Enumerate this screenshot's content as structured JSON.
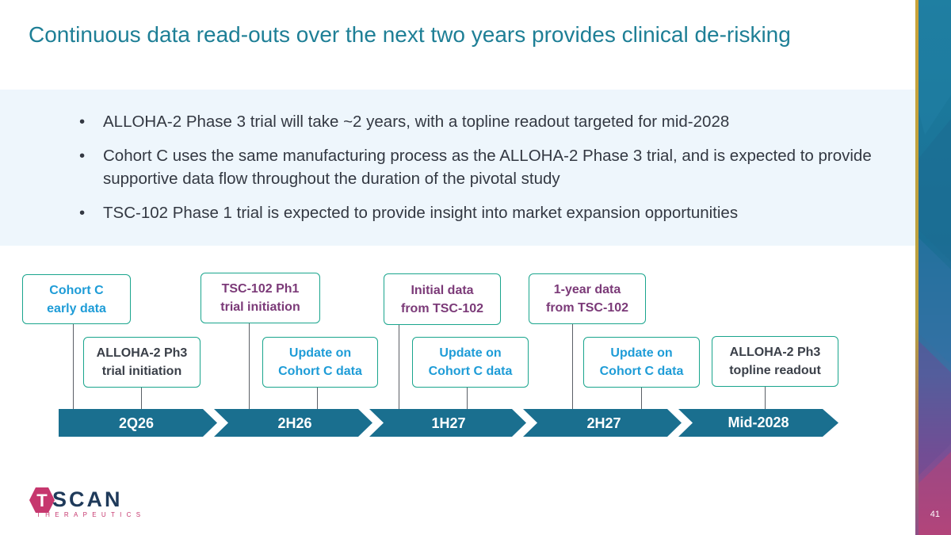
{
  "title": "Continuous data read-outs over the next two years provides clinical de-risking",
  "bullets": [
    "ALLOHA-2 Phase 3 trial will take ~2 years, with a topline readout targeted for mid-2028",
    "Cohort C uses the same manufacturing process as the ALLOHA-2 Phase 3 trial, and is expected to provide supportive data flow throughout the duration of the pivotal study",
    "TSC-102 Phase 1 trial is expected to provide insight into market expansion opportunities"
  ],
  "timeline": {
    "periods": [
      "2Q26",
      "2H26",
      "1H27",
      "2H27",
      "Mid-2028"
    ],
    "events_top": [
      {
        "line1": "Cohort C",
        "line2": "early data"
      },
      {
        "line1": "TSC-102 Ph1",
        "line2": "trial initiation"
      },
      {
        "line1": "Initial data",
        "line2": "from TSC-102"
      },
      {
        "line1": "1-year data",
        "line2": "from TSC-102"
      }
    ],
    "events_bottom": [
      {
        "line1": "ALLOHA-2 Ph3",
        "line2": "trial initiation"
      },
      {
        "line1": "Update on",
        "line2": "Cohort C data"
      },
      {
        "line1": "Update on",
        "line2": "Cohort C data"
      },
      {
        "line1": "Update on",
        "line2": "Cohort C data"
      },
      {
        "line1": "ALLOHA-2 Ph3",
        "line2": "topline readout"
      }
    ]
  },
  "logo": {
    "word": "SCAN",
    "letter": "T",
    "sub": "THERAPEUTICS"
  },
  "page_number": "41",
  "colors": {
    "title": "#1e7f96",
    "arrow": "#1a6f8f",
    "box_border": "#1aa58d",
    "cohort_text": "#1e9cd7",
    "tsc_text": "#7b3a78",
    "alloha_text": "#3a3f48",
    "panel_bg": "#eef6fc"
  }
}
